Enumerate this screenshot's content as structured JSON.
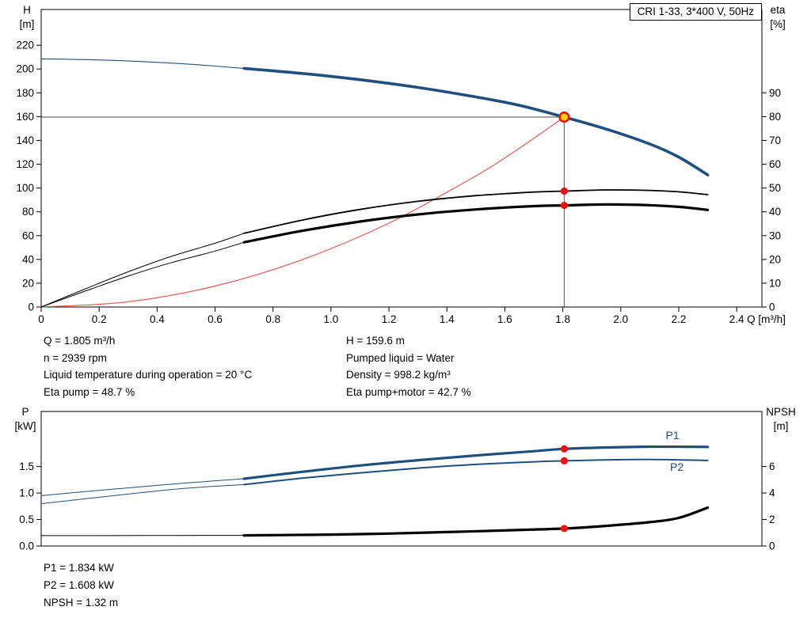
{
  "title_box": "CRI 1-33, 3*400 V, 50Hz",
  "info_top": {
    "col1": [
      "Q = 1.805 m³/h",
      "n = 2939 rpm",
      "Liquid temperature during operation = 20 °C",
      "Eta pump = 48.7 %"
    ],
    "col2": [
      "H = 159.6 m",
      "Pumped liquid = Water",
      "Density = 998.2 kg/m³",
      "Eta pump+motor = 42.7 %"
    ]
  },
  "info_bottom": [
    "P1 = 1.834 kW",
    "P2 = 1.608 kW",
    "NPSH = 1.32 m"
  ],
  "duty_point": {
    "Q_m3h": 1.805,
    "H_m": 159.6,
    "eta_pump_pct": 48.7,
    "eta_pump_motor_pct": 42.7,
    "P1_kW": 1.834,
    "P2_kW": 1.608,
    "NPSH_m": 1.32
  },
  "chart_data": [
    {
      "type": "line",
      "title": "Head and efficiency curves",
      "x_axis": {
        "label": "Q [m³/h]",
        "lim": [
          0,
          2.487
        ],
        "ticks": [
          0,
          0.2,
          0.4,
          0.6,
          0.8,
          1.0,
          1.2,
          1.4,
          1.6,
          1.8,
          2.0,
          2.2,
          2.4
        ],
        "tick_labels": [
          "0",
          "0.2",
          "0.4",
          "0.6",
          "0.8",
          "1.0",
          "1.2",
          "1.4",
          "1.6",
          "1.8",
          "2.0",
          "2.2",
          "2.4"
        ]
      },
      "left_axis": {
        "label": "H",
        "unit": "[m]",
        "lim": [
          0,
          250
        ],
        "ticks": [
          0,
          20,
          40,
          60,
          80,
          100,
          120,
          140,
          160,
          180,
          200,
          220
        ],
        "tick_labels": [
          "0",
          "20",
          "40",
          "60",
          "80",
          "100",
          "120",
          "140",
          "160",
          "180",
          "200",
          "220"
        ]
      },
      "right_axis": {
        "label": "eta",
        "unit": "[%]",
        "to_left_factor": 2,
        "ticks": [
          0,
          10,
          20,
          30,
          40,
          50,
          60,
          70,
          80,
          90
        ],
        "tick_labels": [
          "0",
          "10",
          "20",
          "30",
          "40",
          "50",
          "60",
          "70",
          "80",
          "90"
        ]
      },
      "guides": [
        {
          "type": "h",
          "v": 159.6,
          "q0": 0,
          "q1": 1.805,
          "color": "#8f8f8f",
          "width": 1.7
        },
        {
          "type": "v",
          "q": 1.805,
          "v0": 0,
          "v1": 159.6,
          "color": "#707070",
          "width": 1.2
        }
      ],
      "series": [
        {
          "name": "head-lead",
          "axis": "left",
          "color": "#1f4f7d",
          "width": 1.1,
          "points": [
            [
              0,
              208.5
            ],
            [
              0.2,
              207.6
            ],
            [
              0.4,
              205.6
            ],
            [
              0.55,
              203.4
            ],
            [
              0.7,
              200.5
            ]
          ]
        },
        {
          "name": "head",
          "axis": "left",
          "color": "#1f4f7d",
          "width": 3.6,
          "points": [
            [
              0.7,
              200.5
            ],
            [
              0.9,
              196.3
            ],
            [
              1.1,
              191
            ],
            [
              1.3,
              184.5
            ],
            [
              1.5,
              176.5
            ],
            [
              1.65,
              169.5
            ],
            [
              1.805,
              159.6
            ],
            [
              1.95,
              149.5
            ],
            [
              2.1,
              137
            ],
            [
              2.2,
              126
            ],
            [
              2.3,
              111
            ]
          ]
        },
        {
          "name": "system-curve",
          "axis": "left",
          "color": "#e8594a",
          "width": 1.2,
          "points": [
            [
              0,
              0
            ],
            [
              0.3,
              4.4
            ],
            [
              0.6,
              17.6
            ],
            [
              0.9,
              39.7
            ],
            [
              1.2,
              70.5
            ],
            [
              1.5,
              110.2
            ],
            [
              1.65,
              133.4
            ],
            [
              1.805,
              159.6
            ]
          ]
        },
        {
          "name": "eta-pump-lead",
          "axis": "right",
          "color": "#000000",
          "width": 1,
          "points": [
            [
              0,
              0
            ],
            [
              0.15,
              7.5
            ],
            [
              0.3,
              14.8
            ],
            [
              0.45,
              21.3
            ],
            [
              0.6,
              26.8
            ],
            [
              0.7,
              31
            ]
          ]
        },
        {
          "name": "eta-pump",
          "axis": "right",
          "color": "#000000",
          "width": 1.8,
          "points": [
            [
              0.7,
              31
            ],
            [
              0.9,
              36.5
            ],
            [
              1.1,
              41
            ],
            [
              1.3,
              44.4
            ],
            [
              1.5,
              46.8
            ],
            [
              1.7,
              48.3
            ],
            [
              1.805,
              48.7
            ],
            [
              1.95,
              49.2
            ],
            [
              2.1,
              49
            ],
            [
              2.2,
              48.4
            ],
            [
              2.3,
              47.2
            ]
          ]
        },
        {
          "name": "eta-pump-motor-lead",
          "axis": "right",
          "color": "#000000",
          "width": 1,
          "points": [
            [
              0,
              0
            ],
            [
              0.15,
              6.6
            ],
            [
              0.3,
              13
            ],
            [
              0.45,
              18.7
            ],
            [
              0.6,
              23.5
            ],
            [
              0.7,
              27.2
            ]
          ]
        },
        {
          "name": "eta-pump-motor",
          "axis": "right",
          "color": "#000000",
          "width": 3.2,
          "points": [
            [
              0.7,
              27.2
            ],
            [
              0.9,
              32
            ],
            [
              1.1,
              35.9
            ],
            [
              1.3,
              38.9
            ],
            [
              1.5,
              41
            ],
            [
              1.7,
              42.4
            ],
            [
              1.805,
              42.7
            ],
            [
              1.95,
              43.1
            ],
            [
              2.1,
              42.8
            ],
            [
              2.2,
              42.1
            ],
            [
              2.3,
              40.8
            ]
          ]
        }
      ],
      "markers": [
        {
          "name": "duty-point",
          "q": 1.805,
          "v": 159.6,
          "axis": "left",
          "style": "duty",
          "fill": "#ffd400",
          "stroke": "#e81313"
        },
        {
          "name": "eta-pump-point",
          "q": 1.805,
          "v": 48.7,
          "axis": "right",
          "style": "dot",
          "fill": "#e81313"
        },
        {
          "name": "eta-pump-motor-point",
          "q": 1.805,
          "v": 42.7,
          "axis": "right",
          "style": "dot",
          "fill": "#e81313"
        }
      ]
    },
    {
      "type": "line",
      "title": "Power and NPSH curves",
      "x_axis": {
        "label": "",
        "lim": [
          0,
          2.487
        ],
        "ticks": [],
        "tick_labels": []
      },
      "left_axis": {
        "label": "P",
        "unit": "[kW]",
        "lim": [
          0,
          2.54
        ],
        "ticks": [
          0,
          0.5,
          1.0,
          1.5
        ],
        "tick_labels": [
          "0.0",
          "0.5",
          "1.0",
          "1.5"
        ]
      },
      "right_axis": {
        "label": "NPSH",
        "unit": "[m]",
        "to_left_factor": 0.25,
        "ticks": [
          0,
          2,
          4,
          6
        ],
        "tick_labels": [
          "0",
          "2",
          "4",
          "6"
        ]
      },
      "guides": [],
      "series": [
        {
          "name": "p1-lead",
          "axis": "left",
          "color": "#1f4f7d",
          "width": 1,
          "points": [
            [
              0,
              0.95
            ],
            [
              0.2,
              1.05
            ],
            [
              0.35,
              1.12
            ],
            [
              0.5,
              1.19
            ],
            [
              0.7,
              1.27
            ]
          ]
        },
        {
          "name": "p1",
          "axis": "left",
          "color": "#1f4f7d",
          "width": 3.2,
          "points": [
            [
              0.7,
              1.27
            ],
            [
              0.9,
              1.4
            ],
            [
              1.1,
              1.52
            ],
            [
              1.3,
              1.62
            ],
            [
              1.5,
              1.71
            ],
            [
              1.7,
              1.79
            ],
            [
              1.805,
              1.834
            ],
            [
              1.95,
              1.86
            ],
            [
              2.1,
              1.875
            ],
            [
              2.3,
              1.87
            ]
          ]
        },
        {
          "name": "p2-lead",
          "axis": "left",
          "color": "#1f4f7d",
          "width": 1,
          "points": [
            [
              0,
              0.8
            ],
            [
              0.2,
              0.92
            ],
            [
              0.35,
              1.01
            ],
            [
              0.5,
              1.09
            ],
            [
              0.7,
              1.16
            ]
          ]
        },
        {
          "name": "p2",
          "axis": "left",
          "color": "#1f4f7d",
          "width": 2,
          "points": [
            [
              0.7,
              1.16
            ],
            [
              0.9,
              1.28
            ],
            [
              1.1,
              1.38
            ],
            [
              1.3,
              1.47
            ],
            [
              1.5,
              1.54
            ],
            [
              1.7,
              1.59
            ],
            [
              1.805,
              1.608
            ],
            [
              1.95,
              1.625
            ],
            [
              2.1,
              1.635
            ],
            [
              2.3,
              1.615
            ]
          ]
        },
        {
          "name": "npsh-lead",
          "axis": "right",
          "color": "#000000",
          "width": 1,
          "points": [
            [
              0,
              0.78
            ],
            [
              0.35,
              0.79
            ],
            [
              0.7,
              0.8
            ]
          ]
        },
        {
          "name": "npsh",
          "axis": "right",
          "color": "#000000",
          "width": 3.2,
          "points": [
            [
              0.7,
              0.8
            ],
            [
              1.0,
              0.86
            ],
            [
              1.2,
              0.94
            ],
            [
              1.4,
              1.05
            ],
            [
              1.6,
              1.18
            ],
            [
              1.805,
              1.32
            ],
            [
              1.95,
              1.52
            ],
            [
              2.1,
              1.8
            ],
            [
              2.2,
              2.12
            ],
            [
              2.3,
              2.9
            ]
          ]
        }
      ],
      "markers": [
        {
          "name": "p1-point",
          "q": 1.805,
          "v": 1.834,
          "axis": "left",
          "style": "dot",
          "fill": "#e81313"
        },
        {
          "name": "p2-point",
          "q": 1.805,
          "v": 1.608,
          "axis": "left",
          "style": "dot",
          "fill": "#e81313"
        },
        {
          "name": "npsh-point",
          "q": 1.805,
          "v": 1.32,
          "axis": "right",
          "style": "dot",
          "fill": "#e81313"
        }
      ],
      "annotations": [
        {
          "text": "P1",
          "q": 2.155,
          "v": 2.02,
          "color": "#1f4f7d"
        },
        {
          "text": "P2",
          "q": 2.17,
          "v": 1.42,
          "color": "#1f4f7d"
        }
      ]
    }
  ]
}
